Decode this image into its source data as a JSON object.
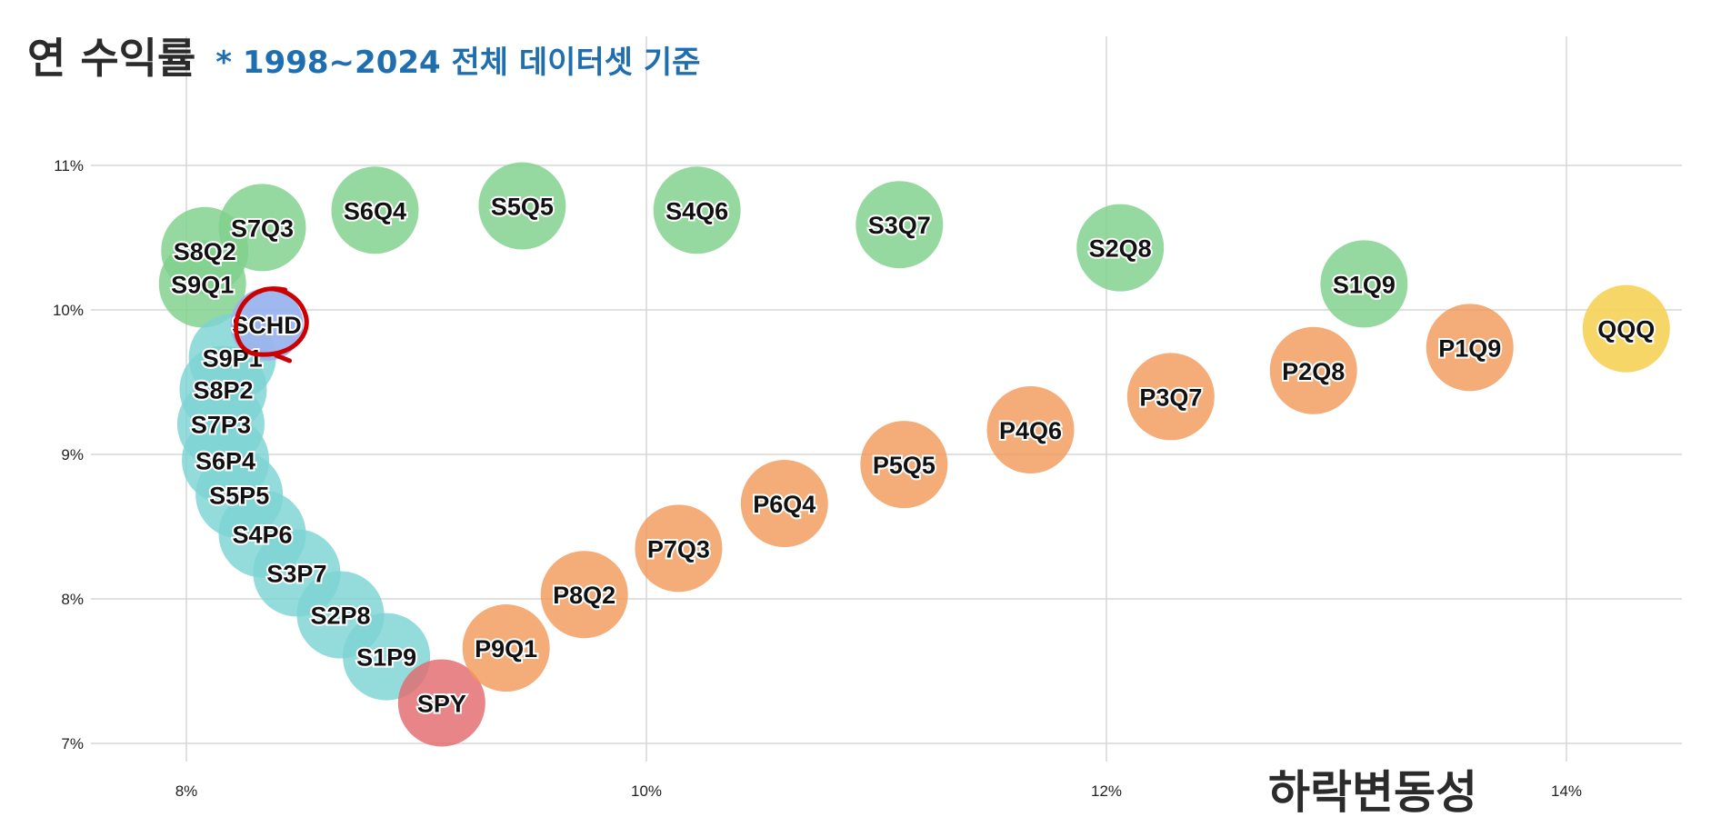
{
  "title": "연 수익률",
  "subtitle": "* 1998~2024 전체 데이터셋 기준",
  "chart_data": {
    "type": "scatter",
    "xlabel": "하락변동성",
    "ylabel": "연 수익률",
    "xlim": [
      7.75,
      14.5
    ],
    "ylim": [
      6.95,
      11.4
    ],
    "xticks": [
      8,
      10,
      12,
      14
    ],
    "yticks": [
      7,
      8,
      9,
      10,
      11
    ],
    "xtick_labels": [
      "8%",
      "10%",
      "12%",
      "14%"
    ],
    "ytick_labels": [
      "7%",
      "8%",
      "9%",
      "10%",
      "11%"
    ],
    "grid": true,
    "colors": {
      "sq": "#7fd18b",
      "sp": "#7dd3d3",
      "pq": "#f29a5c",
      "spy": "#e26a6e",
      "qqq": "#f5d45e",
      "schd": "#9ab4ee",
      "marker_circle": "#cc0000"
    },
    "points": [
      {
        "label": "S9Q1",
        "x": 8.07,
        "y": 10.18,
        "group": "sq"
      },
      {
        "label": "S8Q2",
        "x": 8.08,
        "y": 10.41,
        "group": "sq"
      },
      {
        "label": "S7Q3",
        "x": 8.33,
        "y": 10.57,
        "group": "sq"
      },
      {
        "label": "S6Q4",
        "x": 8.82,
        "y": 10.69,
        "group": "sq"
      },
      {
        "label": "S5Q5",
        "x": 9.46,
        "y": 10.72,
        "group": "sq"
      },
      {
        "label": "S4Q6",
        "x": 10.22,
        "y": 10.69,
        "group": "sq"
      },
      {
        "label": "S3Q7",
        "x": 11.1,
        "y": 10.59,
        "group": "sq"
      },
      {
        "label": "S2Q8",
        "x": 12.06,
        "y": 10.43,
        "group": "sq"
      },
      {
        "label": "S1Q9",
        "x": 13.12,
        "y": 10.18,
        "group": "sq"
      },
      {
        "label": "S9P1",
        "x": 8.2,
        "y": 9.67,
        "group": "sp"
      },
      {
        "label": "S8P2",
        "x": 8.16,
        "y": 9.45,
        "group": "sp"
      },
      {
        "label": "S7P3",
        "x": 8.15,
        "y": 9.21,
        "group": "sp"
      },
      {
        "label": "S6P4",
        "x": 8.17,
        "y": 8.96,
        "group": "sp"
      },
      {
        "label": "S5P5",
        "x": 8.23,
        "y": 8.72,
        "group": "sp"
      },
      {
        "label": "S4P6",
        "x": 8.33,
        "y": 8.45,
        "group": "sp"
      },
      {
        "label": "S3P7",
        "x": 8.48,
        "y": 8.18,
        "group": "sp"
      },
      {
        "label": "S2P8",
        "x": 8.67,
        "y": 7.89,
        "group": "sp"
      },
      {
        "label": "S1P9",
        "x": 8.87,
        "y": 7.6,
        "group": "sp"
      },
      {
        "label": "SPY",
        "x": 9.11,
        "y": 7.28,
        "group": "spy"
      },
      {
        "label": "P9Q1",
        "x": 9.39,
        "y": 7.66,
        "group": "pq"
      },
      {
        "label": "P8Q2",
        "x": 9.73,
        "y": 8.03,
        "group": "pq"
      },
      {
        "label": "P7Q3",
        "x": 10.14,
        "y": 8.35,
        "group": "pq"
      },
      {
        "label": "P6Q4",
        "x": 10.6,
        "y": 8.66,
        "group": "pq"
      },
      {
        "label": "P5Q5",
        "x": 11.12,
        "y": 8.93,
        "group": "pq"
      },
      {
        "label": "P4Q6",
        "x": 11.67,
        "y": 9.17,
        "group": "pq"
      },
      {
        "label": "P3Q7",
        "x": 12.28,
        "y": 9.4,
        "group": "pq"
      },
      {
        "label": "P2Q8",
        "x": 12.9,
        "y": 9.58,
        "group": "pq"
      },
      {
        "label": "P1Q9",
        "x": 13.58,
        "y": 9.74,
        "group": "pq"
      },
      {
        "label": "QQQ",
        "x": 14.26,
        "y": 9.87,
        "group": "qqq"
      },
      {
        "label": "SCHD",
        "x": 8.35,
        "y": 9.9,
        "group": "schd",
        "circled": true
      }
    ]
  }
}
